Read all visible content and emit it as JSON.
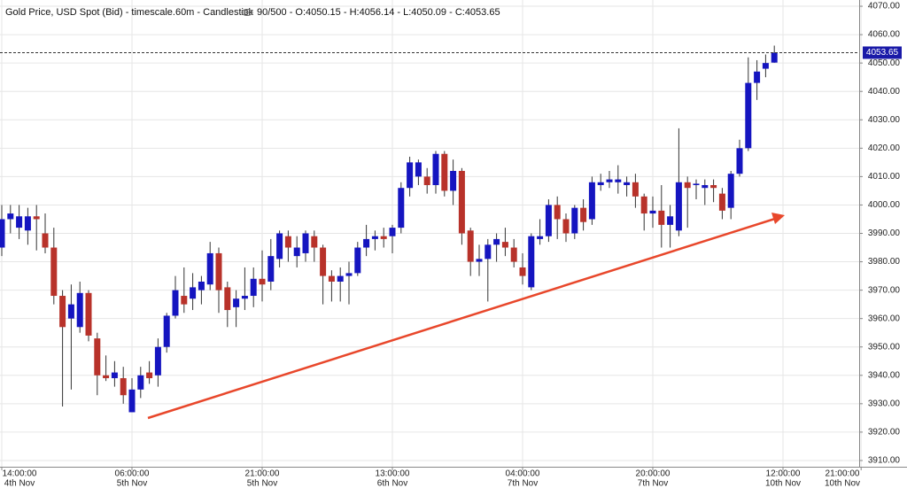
{
  "chart_data": {
    "type": "candlestick",
    "title": "Gold Price, USD Spot (Bid) - timescale.60m - Candlestick",
    "info": "90/500 - O:4050.15 - H:4056.14 - L:4050.09 - C:4053.65",
    "categories": [
      {
        "time": "14:00:00",
        "date": "4th Nov"
      },
      null,
      null,
      null,
      null,
      null,
      null,
      null,
      null,
      null,
      null,
      null,
      null,
      null,
      null,
      {
        "time": "06:00:00",
        "date": "5th Nov"
      },
      null,
      null,
      null,
      null,
      null,
      null,
      null,
      null,
      null,
      null,
      null,
      null,
      null,
      null,
      {
        "time": "21:00:00",
        "date": "5th Nov"
      },
      null,
      null,
      null,
      null,
      null,
      null,
      null,
      null,
      null,
      null,
      null,
      null,
      null,
      null,
      {
        "time": "13:00:00",
        "date": "6th Nov"
      },
      null,
      null,
      null,
      null,
      null,
      null,
      null,
      null,
      null,
      null,
      null,
      null,
      null,
      null,
      {
        "time": "04:00:00",
        "date": "7th Nov"
      },
      null,
      null,
      null,
      null,
      null,
      null,
      null,
      null,
      null,
      null,
      null,
      null,
      null,
      null,
      {
        "time": "20:00:00",
        "date": "7th Nov"
      },
      null,
      null,
      null,
      null,
      null,
      null,
      null,
      null,
      null,
      null,
      null,
      null,
      null,
      null,
      {
        "time": "12:00:00",
        "date": "10th Nov"
      },
      null,
      null,
      null,
      null,
      null,
      null,
      null,
      null,
      {
        "time": "21:00:00",
        "date": "10th Nov"
      }
    ],
    "series": {
      "up_color": "#1515c0",
      "down_color": "#b8322a",
      "open": [
        3985,
        3995,
        3992,
        3991,
        3996,
        3990,
        3985,
        3968,
        3960,
        3957,
        3969,
        3953,
        3940,
        3939,
        3939,
        3927,
        3935,
        3941,
        3940,
        3950,
        3961,
        3968,
        3967,
        3970,
        3972,
        3983,
        3971,
        3964,
        3967,
        3968,
        3974,
        3973,
        3981,
        3989,
        3982,
        3983,
        3989,
        3985,
        3975,
        3973,
        3975,
        3976,
        3985,
        3988,
        3989,
        3989,
        3992,
        4006,
        4010,
        4010,
        4007,
        4018,
        4005,
        4012,
        3991,
        3980,
        3981,
        3986,
        3987,
        3985,
        3978,
        3971,
        3988,
        3989,
        4000,
        3995,
        3990,
        3999,
        3995,
        4007,
        4008,
        4008,
        4007,
        4008,
        4003,
        3997,
        3998,
        3993,
        3991,
        4008,
        4007,
        4006,
        4007,
        4004,
        3999,
        4011,
        4020,
        4043,
        4048,
        4050.15,
        null,
        null,
        null,
        null,
        null,
        null,
        null,
        null,
        null,
        null
      ],
      "high": [
        4000,
        4000,
        4000,
        3999,
        4000,
        3997,
        3992,
        3970,
        3972,
        3973,
        3970,
        3955,
        3947,
        3945,
        3943,
        3939,
        3943,
        3945,
        3953,
        3962,
        3975,
        3978,
        3976,
        3975,
        3987,
        3985,
        3973,
        3970,
        3978,
        3978,
        3984,
        3988,
        3991,
        3991,
        3989,
        3991,
        3991,
        3986,
        3977,
        3978,
        3980,
        3987,
        3993,
        3991,
        3992,
        3993,
        4008,
        4017,
        4016,
        4013,
        4019,
        4019,
        4016,
        4013,
        3992,
        3986,
        3988,
        3990,
        3992,
        3988,
        3983,
        3990,
        3995,
        4002,
        4003,
        3997,
        4000,
        4002,
        4010,
        4011,
        4012,
        4014,
        4010,
        4011,
        4004,
        4003,
        4007,
        4000,
        4027,
        4010,
        4009,
        4009,
        4009,
        4006,
        4012,
        4023,
        4052,
        4051,
        4053,
        4056.14,
        null,
        null,
        null,
        null,
        null,
        null,
        null,
        null,
        null,
        null
      ],
      "low": [
        3982,
        3990,
        3988,
        3986,
        3984,
        3983,
        3965,
        3929,
        3935,
        3955,
        3952,
        3933,
        3938,
        3936,
        3930,
        3927,
        3932,
        3937,
        3936,
        3948,
        3960,
        3962,
        3963,
        3965,
        3970,
        3962,
        3957,
        3957,
        3963,
        3964,
        3966,
        3970,
        3978,
        3980,
        3978,
        3980,
        3980,
        3965,
        3966,
        3966,
        3965,
        3975,
        3982,
        3984,
        3985,
        3983,
        3990,
        4003,
        4007,
        4004,
        4004,
        4003,
        4000,
        3986,
        3975,
        3975,
        3966,
        3980,
        3982,
        3978,
        3972,
        3970,
        3986,
        3987,
        3988,
        3987,
        3988,
        3991,
        3993,
        4005,
        4006,
        4004,
        4003,
        3999,
        3991,
        3992,
        3985,
        3985,
        3989,
        3992,
        4002,
        4000,
        4001,
        3995,
        3995,
        4010,
        4019,
        4037,
        4045,
        4050.09,
        null,
        null,
        null,
        null,
        null,
        null,
        null,
        null,
        null,
        null
      ],
      "close": [
        3995,
        3997,
        3996,
        3996,
        3995,
        3985,
        3968,
        3957,
        3965,
        3969,
        3954,
        3940,
        3939,
        3941,
        3933,
        3935,
        3940,
        3939,
        3950,
        3961,
        3970,
        3965,
        3971,
        3973,
        3983,
        3970,
        3963,
        3967,
        3968,
        3974,
        3972,
        3982,
        3990,
        3985,
        3985,
        3990,
        3985,
        3975,
        3973,
        3975,
        3976,
        3985,
        3988,
        3989,
        3988,
        3992,
        4006,
        4015,
        4015,
        4007,
        4018,
        4005,
        4012,
        3990,
        3980,
        3981,
        3986,
        3988,
        3985,
        3980,
        3975,
        3989,
        3989,
        4000,
        3995,
        3990,
        3999,
        3994,
        4008,
        4008,
        4009,
        4009,
        4008,
        4003,
        3997,
        3998,
        3993,
        3996,
        4008,
        4006,
        4007.5,
        4007,
        4006,
        3998,
        4011,
        4020,
        4043,
        4047,
        4050,
        4053.65,
        null,
        null,
        null,
        null,
        null,
        null,
        null,
        null,
        null,
        null
      ]
    },
    "last_price_line": true,
    "last_price_color": "#1a1aa8",
    "ylim": [
      3907.8,
      4072.2
    ],
    "yticks": [
      {
        "value": 3910,
        "label": "3910.00"
      },
      {
        "value": 3920,
        "label": "3920.00"
      },
      {
        "value": 3930,
        "label": "3930.00"
      },
      {
        "value": 3940,
        "label": "3940.00"
      },
      {
        "value": 3950,
        "label": "3950.00"
      },
      {
        "value": 3960,
        "label": "3960.00"
      },
      {
        "value": 3970,
        "label": "3970.00"
      },
      {
        "value": 3980,
        "label": "3980.00"
      },
      {
        "value": 3990,
        "label": "3990.00"
      },
      {
        "value": 4000,
        "label": "4000.00"
      },
      {
        "value": 4010,
        "label": "4010.00"
      },
      {
        "value": 4020,
        "label": "4020.00"
      },
      {
        "value": 4030,
        "label": "4030.00"
      },
      {
        "value": 4040,
        "label": "4040.00"
      },
      {
        "value": 4050,
        "label": "4050.00"
      },
      {
        "value": 4060,
        "label": "4060.00"
      },
      {
        "value": 4070,
        "label": "4070.00"
      }
    ],
    "grid": true
  }
}
